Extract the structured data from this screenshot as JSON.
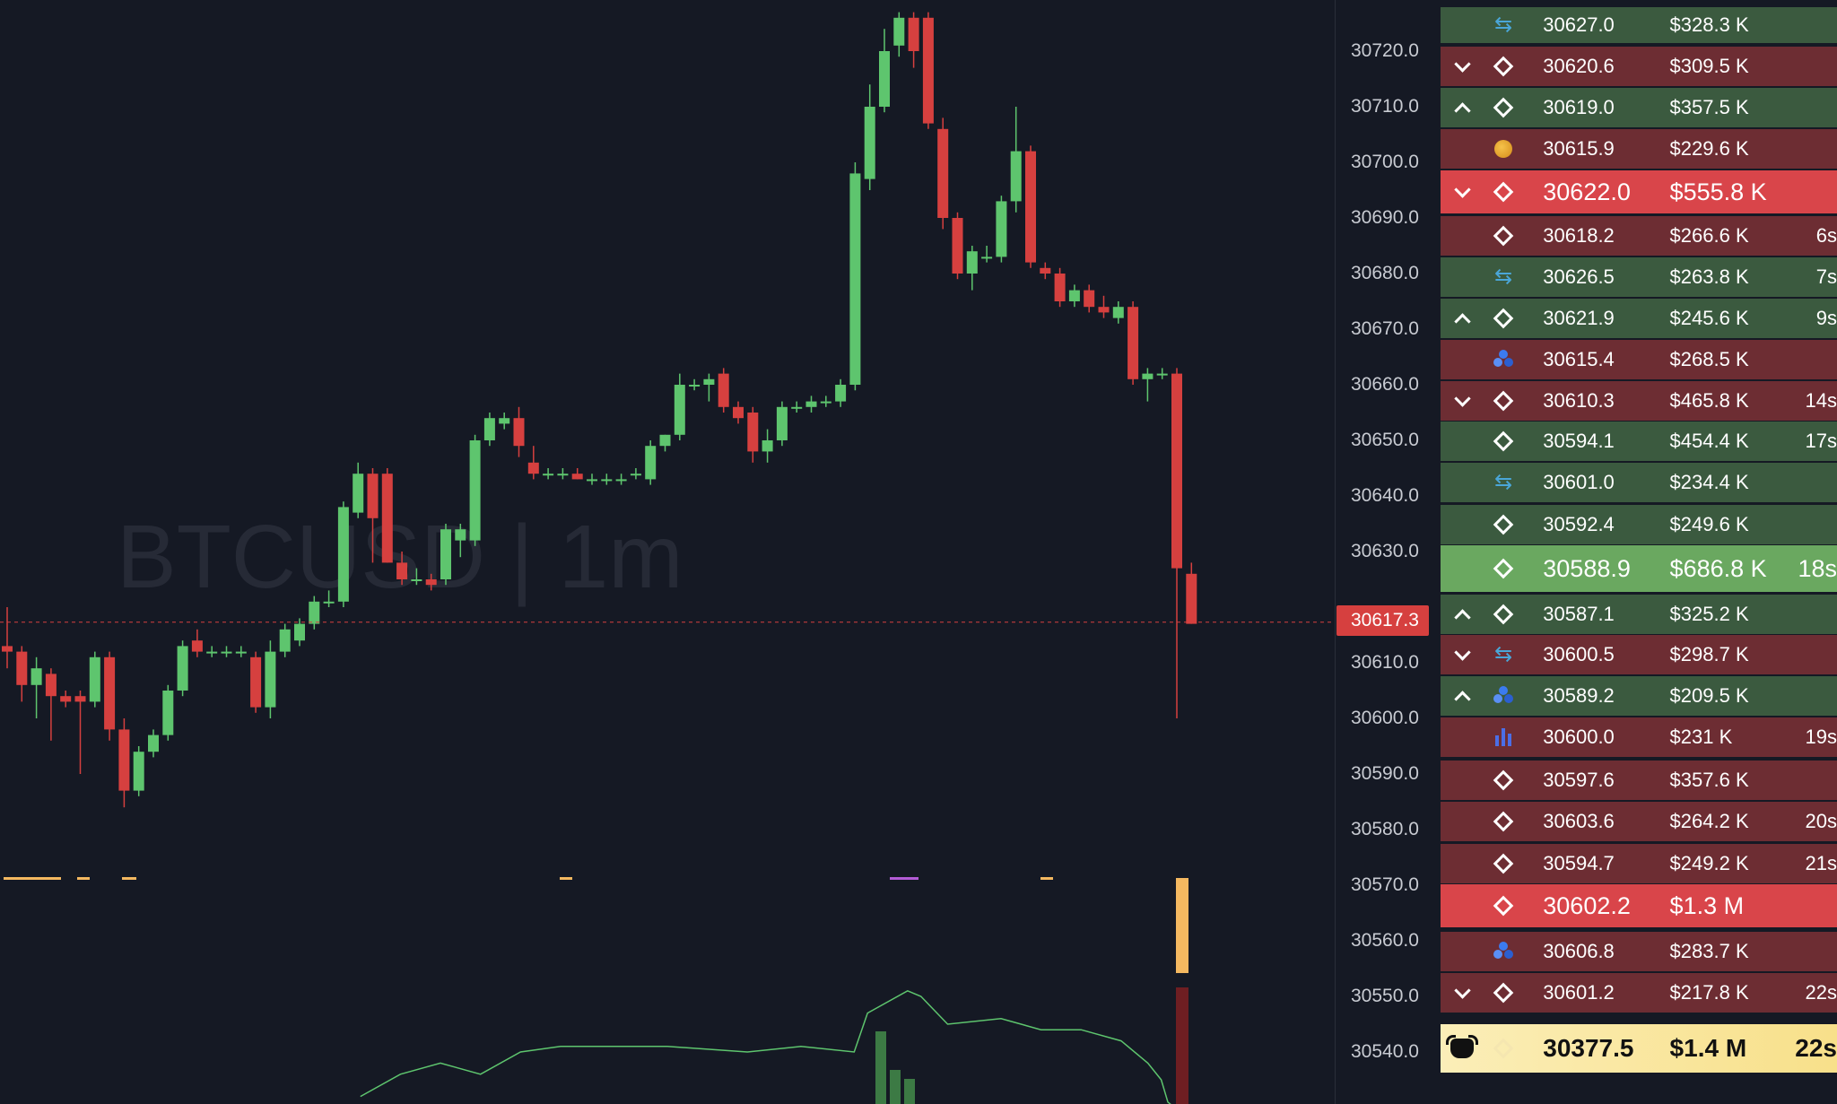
{
  "chart": {
    "watermark": "BTCUSD | 1m",
    "current_price": "30617.3",
    "colors": {
      "up": "#5ec56e",
      "down": "#d6403f",
      "line": "#5ec56e",
      "bg": "#151924"
    }
  },
  "axis": {
    "ticks": [
      "30720.0",
      "30710.0",
      "30700.0",
      "30690.0",
      "30680.0",
      "30670.0",
      "30660.0",
      "30650.0",
      "30640.0",
      "30630.0",
      "30610.0",
      "30600.0",
      "30590.0",
      "30580.0",
      "30570.0",
      "30560.0",
      "30550.0",
      "30540.0"
    ]
  },
  "candles": [
    {
      "o": 30613,
      "h": 30620,
      "l": 30609,
      "c": 30612
    },
    {
      "o": 30612,
      "h": 30613,
      "l": 30603,
      "c": 30606
    },
    {
      "o": 30606,
      "h": 30611,
      "l": 30600,
      "c": 30609
    },
    {
      "o": 30608,
      "h": 30609,
      "l": 30596,
      "c": 30604
    },
    {
      "o": 30604,
      "h": 30605,
      "l": 30602,
      "c": 30603
    },
    {
      "o": 30604,
      "h": 30605,
      "l": 30590,
      "c": 30603
    },
    {
      "o": 30603,
      "h": 30612,
      "l": 30602,
      "c": 30611
    },
    {
      "o": 30611,
      "h": 30612,
      "l": 30596,
      "c": 30598
    },
    {
      "o": 30598,
      "h": 30600,
      "l": 30584,
      "c": 30587
    },
    {
      "o": 30587,
      "h": 30595,
      "l": 30586,
      "c": 30594
    },
    {
      "o": 30594,
      "h": 30598,
      "l": 30593,
      "c": 30597
    },
    {
      "o": 30597,
      "h": 30606,
      "l": 30596,
      "c": 30605
    },
    {
      "o": 30605,
      "h": 30614,
      "l": 30604,
      "c": 30613
    },
    {
      "o": 30614,
      "h": 30616,
      "l": 30611,
      "c": 30612
    },
    {
      "o": 30612,
      "h": 30613,
      "l": 30611,
      "c": 30612
    },
    {
      "o": 30612,
      "h": 30613,
      "l": 30611,
      "c": 30612
    },
    {
      "o": 30612,
      "h": 30613,
      "l": 30611,
      "c": 30612
    },
    {
      "o": 30611,
      "h": 30612,
      "l": 30601,
      "c": 30602
    },
    {
      "o": 30602,
      "h": 30614,
      "l": 30600,
      "c": 30612
    },
    {
      "o": 30612,
      "h": 30617,
      "l": 30611,
      "c": 30616
    },
    {
      "o": 30614,
      "h": 30618,
      "l": 30613,
      "c": 30617
    },
    {
      "o": 30617,
      "h": 30622,
      "l": 30616,
      "c": 30621
    },
    {
      "o": 30621,
      "h": 30623,
      "l": 30620,
      "c": 30621
    },
    {
      "o": 30621,
      "h": 30639,
      "l": 30620,
      "c": 30638
    },
    {
      "o": 30637,
      "h": 30646,
      "l": 30636,
      "c": 30644
    },
    {
      "o": 30644,
      "h": 30645,
      "l": 30628,
      "c": 30636
    },
    {
      "o": 30644,
      "h": 30645,
      "l": 30628,
      "c": 30628
    },
    {
      "o": 30628,
      "h": 30630,
      "l": 30624,
      "c": 30625
    },
    {
      "o": 30625,
      "h": 30627,
      "l": 30624,
      "c": 30625
    },
    {
      "o": 30625,
      "h": 30626,
      "l": 30623,
      "c": 30624
    },
    {
      "o": 30625,
      "h": 30635,
      "l": 30624,
      "c": 30634
    },
    {
      "o": 30632,
      "h": 30635,
      "l": 30629,
      "c": 30634
    },
    {
      "o": 30632,
      "h": 30651,
      "l": 30631,
      "c": 30650
    },
    {
      "o": 30650,
      "h": 30655,
      "l": 30649,
      "c": 30654
    },
    {
      "o": 30653,
      "h": 30655,
      "l": 30652,
      "c": 30654
    },
    {
      "o": 30654,
      "h": 30656,
      "l": 30647,
      "c": 30649
    },
    {
      "o": 30646,
      "h": 30649,
      "l": 30643,
      "c": 30644
    },
    {
      "o": 30644,
      "h": 30645,
      "l": 30643,
      "c": 30644
    },
    {
      "o": 30644,
      "h": 30645,
      "l": 30643,
      "c": 30644
    },
    {
      "o": 30644,
      "h": 30645,
      "l": 30643,
      "c": 30643
    },
    {
      "o": 30643,
      "h": 30644,
      "l": 30642,
      "c": 30643
    },
    {
      "o": 30643,
      "h": 30644,
      "l": 30642,
      "c": 30643
    },
    {
      "o": 30643,
      "h": 30644,
      "l": 30642,
      "c": 30643
    },
    {
      "o": 30644,
      "h": 30645,
      "l": 30643,
      "c": 30644
    },
    {
      "o": 30643,
      "h": 30650,
      "l": 30642,
      "c": 30649
    },
    {
      "o": 30649,
      "h": 30651,
      "l": 30648,
      "c": 30651
    },
    {
      "o": 30651,
      "h": 30662,
      "l": 30650,
      "c": 30660
    },
    {
      "o": 30660,
      "h": 30661,
      "l": 30659,
      "c": 30660
    },
    {
      "o": 30660,
      "h": 30662,
      "l": 30657,
      "c": 30661
    },
    {
      "o": 30662,
      "h": 30663,
      "l": 30655,
      "c": 30656
    },
    {
      "o": 30656,
      "h": 30657,
      "l": 30653,
      "c": 30654
    },
    {
      "o": 30655,
      "h": 30656,
      "l": 30646,
      "c": 30648
    },
    {
      "o": 30648,
      "h": 30652,
      "l": 30646,
      "c": 30650
    },
    {
      "o": 30650,
      "h": 30657,
      "l": 30649,
      "c": 30656
    },
    {
      "o": 30656,
      "h": 30657,
      "l": 30655,
      "c": 30656
    },
    {
      "o": 30656,
      "h": 30658,
      "l": 30655,
      "c": 30657
    },
    {
      "o": 30657,
      "h": 30658,
      "l": 30656,
      "c": 30657
    },
    {
      "o": 30657,
      "h": 30661,
      "l": 30656,
      "c": 30660
    },
    {
      "o": 30660,
      "h": 30700,
      "l": 30659,
      "c": 30698
    },
    {
      "o": 30697,
      "h": 30714,
      "l": 30695,
      "c": 30710
    },
    {
      "o": 30710,
      "h": 30724,
      "l": 30709,
      "c": 30720
    },
    {
      "o": 30721,
      "h": 30727,
      "l": 30719,
      "c": 30726
    },
    {
      "o": 30726,
      "h": 30727,
      "l": 30717,
      "c": 30720
    },
    {
      "o": 30726,
      "h": 30727,
      "l": 30706,
      "c": 30707
    },
    {
      "o": 30706,
      "h": 30708,
      "l": 30688,
      "c": 30690
    },
    {
      "o": 30690,
      "h": 30691,
      "l": 30679,
      "c": 30680
    },
    {
      "o": 30680,
      "h": 30685,
      "l": 30677,
      "c": 30684
    },
    {
      "o": 30683,
      "h": 30685,
      "l": 30682,
      "c": 30683
    },
    {
      "o": 30683,
      "h": 30694,
      "l": 30682,
      "c": 30693
    },
    {
      "o": 30693,
      "h": 30710,
      "l": 30691,
      "c": 30702
    },
    {
      "o": 30702,
      "h": 30703,
      "l": 30681,
      "c": 30682
    },
    {
      "o": 30681,
      "h": 30682,
      "l": 30679,
      "c": 30680
    },
    {
      "o": 30680,
      "h": 30681,
      "l": 30674,
      "c": 30675
    },
    {
      "o": 30675,
      "h": 30678,
      "l": 30674,
      "c": 30677
    },
    {
      "o": 30677,
      "h": 30678,
      "l": 30673,
      "c": 30674
    },
    {
      "o": 30674,
      "h": 30676,
      "l": 30672,
      "c": 30673
    },
    {
      "o": 30672,
      "h": 30675,
      "l": 30671,
      "c": 30674
    },
    {
      "o": 30674,
      "h": 30675,
      "l": 30660,
      "c": 30661
    },
    {
      "o": 30661,
      "h": 30663,
      "l": 30657,
      "c": 30662
    },
    {
      "o": 30662,
      "h": 30663,
      "l": 30661,
      "c": 30662
    },
    {
      "o": 30662,
      "h": 30663,
      "l": 30600,
      "c": 30627
    },
    {
      "o": 30626,
      "h": 30628,
      "l": 30617,
      "c": 30617
    }
  ],
  "overlay_line": [
    [
      0.27,
      30532
    ],
    [
      0.3,
      30536
    ],
    [
      0.33,
      30538
    ],
    [
      0.36,
      30536
    ],
    [
      0.39,
      30540
    ],
    [
      0.42,
      30541
    ],
    [
      0.5,
      30541
    ],
    [
      0.56,
      30540
    ],
    [
      0.6,
      30541
    ],
    [
      0.64,
      30540
    ],
    [
      0.65,
      30547
    ],
    [
      0.68,
      30551
    ],
    [
      0.69,
      30550
    ],
    [
      0.71,
      30545
    ],
    [
      0.75,
      30546
    ],
    [
      0.78,
      30544
    ],
    [
      0.81,
      30544
    ],
    [
      0.84,
      30542
    ],
    [
      0.86,
      30538
    ],
    [
      0.87,
      30535
    ],
    [
      0.875,
      30531
    ],
    [
      0.88,
      30530
    ]
  ],
  "trades": [
    {
      "side": "up",
      "arrow": "",
      "ex": "ex-cycle-icon",
      "price": "30627.0",
      "amount": "$328.3 K",
      "age": "",
      "size": "normal"
    },
    {
      "side": "down",
      "arrow": "v",
      "ex": "ex-binance-icon",
      "price": "30620.6",
      "amount": "$309.5 K",
      "age": "",
      "size": "normal"
    },
    {
      "side": "up",
      "arrow": "^",
      "ex": "ex-binance-icon",
      "price": "30619.0",
      "amount": "$357.5 K",
      "age": "",
      "size": "normal"
    },
    {
      "side": "down",
      "arrow": "",
      "ex": "ex-bitmex-icon",
      "price": "30615.9",
      "amount": "$229.6 K",
      "age": "",
      "size": "normal"
    },
    {
      "side": "down",
      "arrow": "v",
      "ex": "ex-binance-icon",
      "price": "30622.0",
      "amount": "$555.8 K",
      "age": "",
      "size": "big"
    },
    {
      "side": "down",
      "arrow": "",
      "ex": "ex-binance-icon",
      "price": "30618.2",
      "amount": "$266.6 K",
      "age": "6s",
      "size": "normal"
    },
    {
      "side": "up",
      "arrow": "",
      "ex": "ex-cycle-icon",
      "price": "30626.5",
      "amount": "$263.8 K",
      "age": "7s",
      "size": "normal"
    },
    {
      "side": "up",
      "arrow": "^",
      "ex": "ex-binance-icon",
      "price": "30621.9",
      "amount": "$245.6 K",
      "age": "9s",
      "size": "normal"
    },
    {
      "side": "down",
      "arrow": "",
      "ex": "ex-okx-icon",
      "price": "30615.4",
      "amount": "$268.5 K",
      "age": "",
      "size": "normal"
    },
    {
      "side": "down",
      "arrow": "v",
      "ex": "ex-binance-icon",
      "price": "30610.3",
      "amount": "$465.8 K",
      "age": "14s",
      "size": "normal"
    },
    {
      "side": "up",
      "arrow": "",
      "ex": "ex-binance-icon",
      "price": "30594.1",
      "amount": "$454.4 K",
      "age": "17s",
      "size": "normal"
    },
    {
      "side": "up",
      "arrow": "",
      "ex": "ex-cycle-icon",
      "price": "30601.0",
      "amount": "$234.4 K",
      "age": "",
      "size": "normal"
    },
    {
      "side": "up",
      "arrow": "",
      "ex": "ex-binance-icon",
      "price": "30592.4",
      "amount": "$249.6 K",
      "age": "",
      "size": "normal"
    },
    {
      "side": "up",
      "arrow": "",
      "ex": "ex-binance-icon",
      "price": "30588.9",
      "amount": "$686.8 K",
      "age": "18s",
      "size": "big"
    },
    {
      "side": "up",
      "arrow": "^",
      "ex": "ex-binance-icon",
      "price": "30587.1",
      "amount": "$325.2 K",
      "age": "",
      "size": "normal"
    },
    {
      "side": "down",
      "arrow": "v",
      "ex": "ex-cycle-icon",
      "price": "30600.5",
      "amount": "$298.7 K",
      "age": "",
      "size": "normal"
    },
    {
      "side": "up",
      "arrow": "^",
      "ex": "ex-okx-icon",
      "price": "30589.2",
      "amount": "$209.5 K",
      "age": "",
      "size": "normal"
    },
    {
      "side": "down",
      "arrow": "",
      "ex": "ex-bars-icon",
      "price": "30600.0",
      "amount": "$231 K",
      "age": "19s",
      "size": "normal"
    },
    {
      "side": "down",
      "arrow": "",
      "ex": "ex-binance-icon",
      "price": "30597.6",
      "amount": "$357.6 K",
      "age": "",
      "size": "normal"
    },
    {
      "side": "down",
      "arrow": "",
      "ex": "ex-binance-icon",
      "price": "30603.6",
      "amount": "$264.2 K",
      "age": "20s",
      "size": "normal"
    },
    {
      "side": "down",
      "arrow": "",
      "ex": "ex-binance-icon",
      "price": "30594.7",
      "amount": "$249.2 K",
      "age": "21s",
      "size": "normal"
    },
    {
      "side": "down",
      "arrow": "",
      "ex": "ex-binance-icon",
      "price": "30602.2",
      "amount": "$1.3 M",
      "age": "",
      "size": "big"
    },
    {
      "side": "down",
      "arrow": "",
      "ex": "ex-okx-icon",
      "price": "30606.8",
      "amount": "$283.7 K",
      "age": "",
      "size": "normal"
    },
    {
      "side": "down",
      "arrow": "v",
      "ex": "ex-binance-icon",
      "price": "30601.2",
      "amount": "$217.8 K",
      "age": "22s",
      "size": "normal"
    }
  ],
  "total": {
    "icon": "bull-icon",
    "ex": "ex-binance-icon",
    "price": "30377.5",
    "amount": "$1.4 M",
    "age": "22s"
  }
}
